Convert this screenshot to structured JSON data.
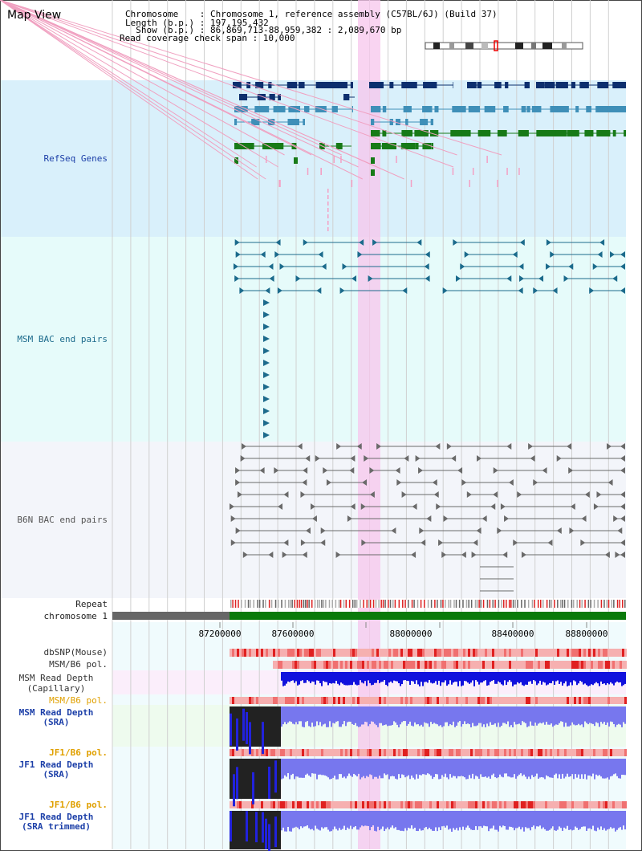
{
  "page": {
    "title": "Map View"
  },
  "info": {
    "chromosome_line": "Chromosome    : Chromosome 1, reference assembly (C57BL/6J) (Build 37)",
    "length_line": "Length (b.p.) : 197,195,432",
    "show_line": "  Show (b.p.) : 86,869,713-88,959,382 : 2,089,670 bp",
    "coverage_line": "Read coverage check span : 10,000"
  },
  "axis": {
    "ticks": [
      "87200000",
      "87600000",
      "88000000",
      "88400000",
      "88800000"
    ]
  },
  "tracks": {
    "refseq_genes": "RefSeq Genes",
    "msm_bac": "MSM BAC end pairs",
    "b6n_bac": "B6N BAC end pairs",
    "repeat": "Repeat",
    "chromosome": "chromosome 1",
    "dbsnp": "dbSNP(Mouse)",
    "msm_b6_pol_1": "MSM/B6 pol.",
    "msm_read_depth_cap_1": "MSM Read Depth",
    "msm_read_depth_cap_2": "(Capillary)",
    "msm_b6_pol_2": "MSM/B6 pol.",
    "msm_read_depth_sra_1": "MSM Read Depth",
    "msm_read_depth_sra_2": "(SRA)",
    "jf1_b6_pol_1": "JF1/B6 pol.",
    "jf1_read_depth_sra_1": "JF1 Read Depth",
    "jf1_read_depth_sra_2": "(SRA)",
    "jf1_b6_pol_2": "JF1/B6 pol.",
    "jf1_read_depth_trim_1": "JF1 Read Depth",
    "jf1_read_depth_trim_2": "(SRA trimmed)"
  },
  "colors": {
    "refseq_bg": "#d9f0fb",
    "msm_bg": "#e6fbfa",
    "b6n_bg": "#f3f5fa",
    "gene_dark": "#0d2f6e",
    "gene_mid": "#3f8fb8",
    "gene_green": "#177a17",
    "msm_link": "#1c6b8c",
    "b6n_link": "#6a6a6a",
    "highlight": "#f7c6ec",
    "depth_blue": "#2222dd",
    "depth_light": "#7777ee",
    "pol_red": "#e83030",
    "label_blue": "#1c3fa8",
    "label_orange": "#e0a000"
  }
}
